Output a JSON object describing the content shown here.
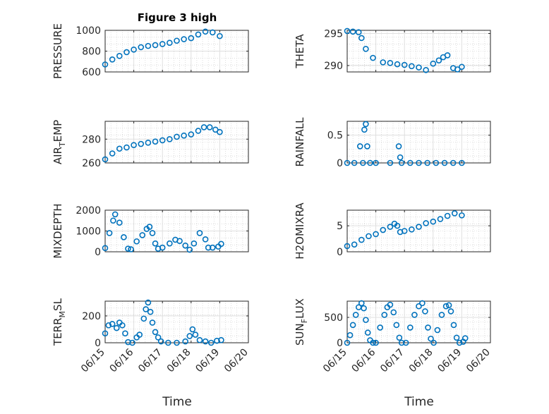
{
  "title": "Figure 3 high",
  "chart_data": [
    {
      "type": "scatter",
      "ylabel": "PRESSURE",
      "ylim": [
        600,
        1000
      ],
      "yticks": [
        600,
        800,
        1000
      ],
      "xlim": [
        0,
        5
      ],
      "points": [
        [
          0.0,
          672
        ],
        [
          0.25,
          720
        ],
        [
          0.5,
          754
        ],
        [
          0.75,
          790
        ],
        [
          1.0,
          815
        ],
        [
          1.25,
          838
        ],
        [
          1.5,
          850
        ],
        [
          1.75,
          858
        ],
        [
          2.0,
          868
        ],
        [
          2.25,
          880
        ],
        [
          2.5,
          900
        ],
        [
          2.75,
          915
        ],
        [
          3.0,
          925
        ],
        [
          3.25,
          960
        ],
        [
          3.5,
          988
        ],
        [
          3.75,
          980
        ],
        [
          4.0,
          945
        ]
      ]
    },
    {
      "type": "scatter",
      "ylabel": "THETA",
      "ylim": [
        289,
        295.5
      ],
      "yticks": [
        290,
        295
      ],
      "xlim": [
        0,
        5
      ],
      "points": [
        [
          0.0,
          295.4
        ],
        [
          0.2,
          295.3
        ],
        [
          0.4,
          295.2
        ],
        [
          0.5,
          294.3
        ],
        [
          0.65,
          292.6
        ],
        [
          0.9,
          291.2
        ],
        [
          1.25,
          290.5
        ],
        [
          1.5,
          290.4
        ],
        [
          1.75,
          290.2
        ],
        [
          2.0,
          290.1
        ],
        [
          2.25,
          289.9
        ],
        [
          2.5,
          289.7
        ],
        [
          2.75,
          289.3
        ],
        [
          3.0,
          290.3
        ],
        [
          3.2,
          290.8
        ],
        [
          3.35,
          291.3
        ],
        [
          3.5,
          291.6
        ],
        [
          3.7,
          289.6
        ],
        [
          3.85,
          289.4
        ],
        [
          4.0,
          289.8
        ]
      ]
    },
    {
      "type": "scatter",
      "ylabel": "AIR_TEMP",
      "ylim": [
        260,
        295
      ],
      "yticks": [
        260,
        280
      ],
      "xlim": [
        0,
        5
      ],
      "points": [
        [
          0.0,
          263
        ],
        [
          0.25,
          268
        ],
        [
          0.5,
          272
        ],
        [
          0.75,
          273
        ],
        [
          1.0,
          275
        ],
        [
          1.25,
          276
        ],
        [
          1.5,
          277
        ],
        [
          1.75,
          278
        ],
        [
          2.0,
          279
        ],
        [
          2.25,
          280
        ],
        [
          2.5,
          282
        ],
        [
          2.75,
          283
        ],
        [
          3.0,
          284
        ],
        [
          3.25,
          287
        ],
        [
          3.45,
          290
        ],
        [
          3.65,
          290
        ],
        [
          3.85,
          288
        ],
        [
          4.0,
          286
        ]
      ]
    },
    {
      "type": "scatter",
      "ylabel": "RAINFALL",
      "ylim": [
        0,
        0.75
      ],
      "yticks": [
        0,
        0.5
      ],
      "xlim": [
        0,
        5
      ],
      "points": [
        [
          0.0,
          0
        ],
        [
          0.25,
          0
        ],
        [
          0.45,
          0.3
        ],
        [
          0.55,
          0
        ],
        [
          0.6,
          0.6
        ],
        [
          0.65,
          0.7
        ],
        [
          0.7,
          0.3
        ],
        [
          0.8,
          0
        ],
        [
          1.0,
          0
        ],
        [
          1.5,
          0
        ],
        [
          1.8,
          0.3
        ],
        [
          1.85,
          0.1
        ],
        [
          1.9,
          0
        ],
        [
          2.2,
          0
        ],
        [
          2.5,
          0
        ],
        [
          2.8,
          0
        ],
        [
          3.1,
          0
        ],
        [
          3.4,
          0
        ],
        [
          3.7,
          0
        ],
        [
          4.0,
          0
        ]
      ]
    },
    {
      "type": "scatter",
      "ylabel": "MIXDEPTH",
      "ylim": [
        0,
        2000
      ],
      "yticks": [
        0,
        1000,
        2000
      ],
      "xlim": [
        0,
        5
      ],
      "points": [
        [
          0.0,
          180
        ],
        [
          0.15,
          900
        ],
        [
          0.28,
          1500
        ],
        [
          0.35,
          1800
        ],
        [
          0.5,
          1400
        ],
        [
          0.65,
          700
        ],
        [
          0.8,
          150
        ],
        [
          0.9,
          120
        ],
        [
          1.1,
          500
        ],
        [
          1.3,
          800
        ],
        [
          1.45,
          1100
        ],
        [
          1.55,
          1200
        ],
        [
          1.65,
          900
        ],
        [
          1.75,
          400
        ],
        [
          1.85,
          150
        ],
        [
          2.0,
          200
        ],
        [
          2.25,
          400
        ],
        [
          2.45,
          580
        ],
        [
          2.6,
          520
        ],
        [
          2.8,
          300
        ],
        [
          2.95,
          100
        ],
        [
          3.1,
          400
        ],
        [
          3.3,
          900
        ],
        [
          3.5,
          600
        ],
        [
          3.6,
          200
        ],
        [
          3.75,
          200
        ],
        [
          3.95,
          250
        ],
        [
          4.05,
          380
        ]
      ]
    },
    {
      "type": "scatter",
      "ylabel": "H2OMIXRA",
      "ylim": [
        0,
        8
      ],
      "yticks": [
        0,
        5
      ],
      "xlim": [
        0,
        5
      ],
      "points": [
        [
          0.0,
          1.1
        ],
        [
          0.25,
          1.4
        ],
        [
          0.5,
          2.3
        ],
        [
          0.75,
          3.0
        ],
        [
          1.0,
          3.4
        ],
        [
          1.25,
          4.2
        ],
        [
          1.5,
          4.8
        ],
        [
          1.65,
          5.4
        ],
        [
          1.75,
          5.0
        ],
        [
          1.85,
          3.8
        ],
        [
          2.0,
          4.0
        ],
        [
          2.25,
          4.3
        ],
        [
          2.5,
          4.8
        ],
        [
          2.75,
          5.5
        ],
        [
          3.0,
          5.8
        ],
        [
          3.25,
          6.3
        ],
        [
          3.5,
          6.9
        ],
        [
          3.75,
          7.4
        ],
        [
          4.0,
          7.0
        ]
      ]
    },
    {
      "type": "scatter",
      "ylabel": "TERR_MSL",
      "ylim": [
        0,
        310
      ],
      "yticks": [
        0,
        200
      ],
      "xlim": [
        0,
        5
      ],
      "points": [
        [
          0.0,
          70
        ],
        [
          0.12,
          130
        ],
        [
          0.25,
          140
        ],
        [
          0.4,
          110
        ],
        [
          0.5,
          150
        ],
        [
          0.6,
          130
        ],
        [
          0.7,
          70
        ],
        [
          0.8,
          5
        ],
        [
          0.95,
          0
        ],
        [
          1.1,
          40
        ],
        [
          1.2,
          60
        ],
        [
          1.35,
          180
        ],
        [
          1.42,
          250
        ],
        [
          1.5,
          300
        ],
        [
          1.58,
          230
        ],
        [
          1.65,
          150
        ],
        [
          1.75,
          80
        ],
        [
          1.85,
          40
        ],
        [
          1.95,
          10
        ],
        [
          2.2,
          0
        ],
        [
          2.5,
          0
        ],
        [
          2.8,
          10
        ],
        [
          2.95,
          50
        ],
        [
          3.05,
          100
        ],
        [
          3.15,
          60
        ],
        [
          3.3,
          20
        ],
        [
          3.5,
          10
        ],
        [
          3.7,
          0
        ],
        [
          3.9,
          15
        ],
        [
          4.05,
          20
        ]
      ]
    },
    {
      "type": "scatter",
      "ylabel": "SUN_FLUX",
      "ylim": [
        0,
        820
      ],
      "yticks": [
        0,
        500
      ],
      "xlim": [
        0,
        5
      ],
      "points": [
        [
          0.0,
          0
        ],
        [
          0.1,
          150
        ],
        [
          0.2,
          350
        ],
        [
          0.3,
          550
        ],
        [
          0.4,
          700
        ],
        [
          0.5,
          780
        ],
        [
          0.58,
          680
        ],
        [
          0.65,
          450
        ],
        [
          0.72,
          200
        ],
        [
          0.8,
          50
        ],
        [
          0.9,
          0
        ],
        [
          1.0,
          0
        ],
        [
          1.15,
          300
        ],
        [
          1.3,
          550
        ],
        [
          1.4,
          700
        ],
        [
          1.5,
          750
        ],
        [
          1.62,
          600
        ],
        [
          1.72,
          350
        ],
        [
          1.82,
          100
        ],
        [
          1.9,
          0
        ],
        [
          2.05,
          0
        ],
        [
          2.2,
          300
        ],
        [
          2.35,
          550
        ],
        [
          2.5,
          720
        ],
        [
          2.62,
          780
        ],
        [
          2.72,
          620
        ],
        [
          2.82,
          300
        ],
        [
          2.92,
          80
        ],
        [
          3.02,
          0
        ],
        [
          3.15,
          250
        ],
        [
          3.3,
          550
        ],
        [
          3.45,
          720
        ],
        [
          3.55,
          740
        ],
        [
          3.62,
          620
        ],
        [
          3.72,
          350
        ],
        [
          3.82,
          100
        ],
        [
          3.92,
          0
        ],
        [
          4.05,
          20
        ],
        [
          4.12,
          90
        ]
      ]
    }
  ],
  "xaxis": {
    "label": "Time",
    "ticks": [
      "06/15",
      "06/16",
      "06/17",
      "06/18",
      "06/19",
      "06/20"
    ]
  },
  "colors": {
    "marker": "#0072BD",
    "grid_minor": "#c8c8c8",
    "grid_major": "#dfdfdf",
    "axis": "#262626"
  }
}
